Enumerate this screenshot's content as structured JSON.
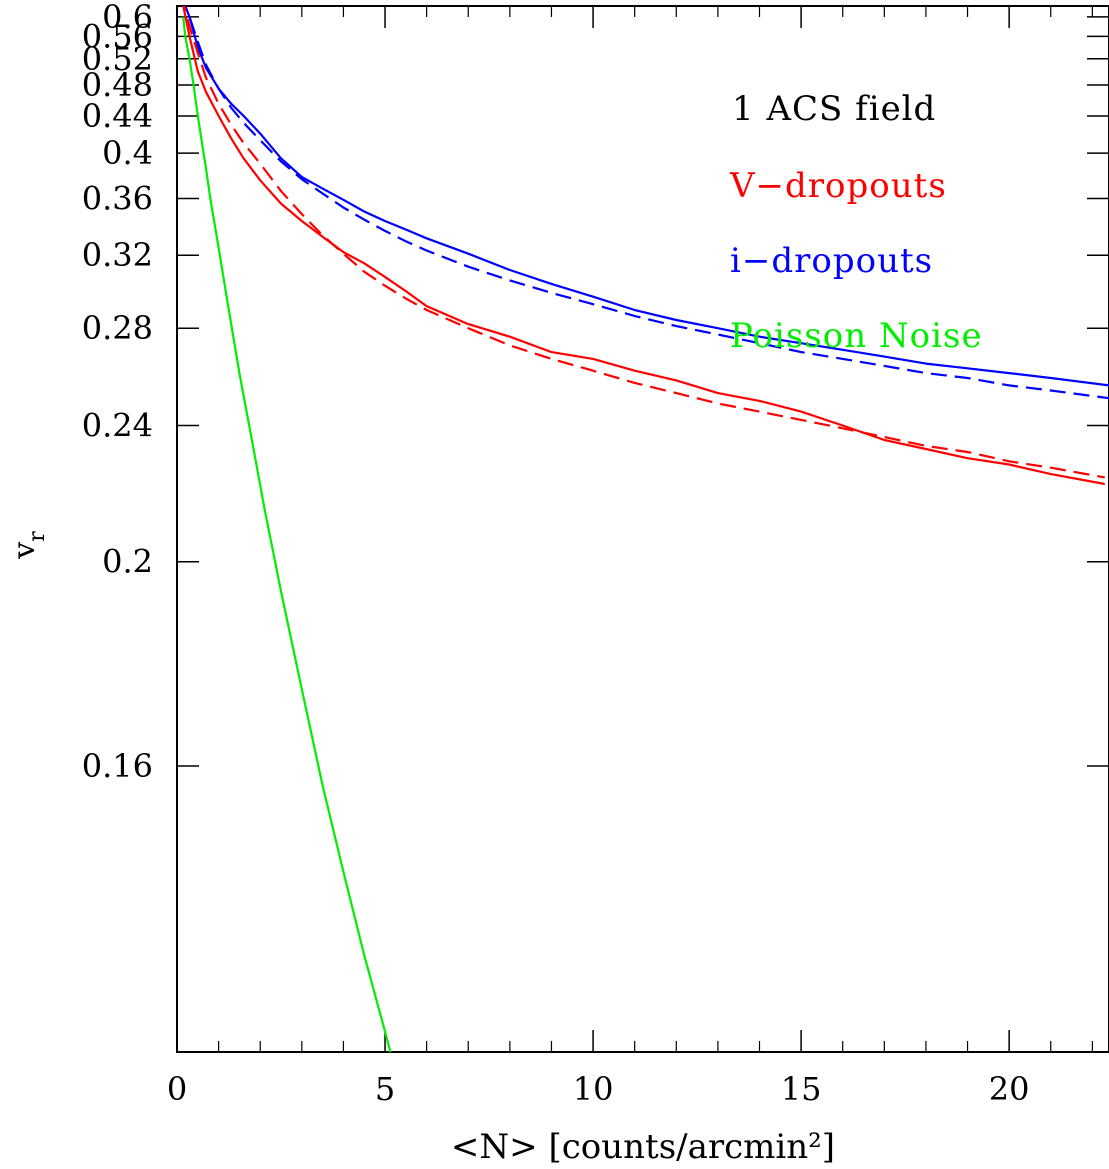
{
  "chart_data": {
    "type": "line",
    "xlabel": "<N> [counts/arcmin²]",
    "ylabel": "v_r",
    "xlim": [
      0,
      22.4
    ],
    "ylim": [
      0.125,
      0.625
    ],
    "y_scale": "reciprocal",
    "grid": false,
    "legend_position": "top-right",
    "title": "",
    "annotation": "1 ACS field",
    "x_ticks": [
      0,
      5,
      10,
      15,
      20
    ],
    "x_tick_labels": [
      "0",
      "5",
      "10",
      "15",
      "20"
    ],
    "y_ticks": [
      0.16,
      0.2,
      0.24,
      0.28,
      0.32,
      0.36,
      0.4,
      0.44,
      0.48,
      0.52,
      0.56,
      0.6
    ],
    "y_tick_labels": [
      "0.16",
      "0.2",
      "0.24",
      "0.28",
      "0.32",
      "0.36",
      "0.4",
      "0.44",
      "0.48",
      "0.52",
      "0.56",
      "0.6"
    ],
    "legend": [
      {
        "label": "V−dropouts",
        "color": "#ff0000"
      },
      {
        "label": "i−dropouts",
        "color": "#0000ff"
      },
      {
        "label": "Poisson Noise",
        "color": "#00ee00"
      }
    ],
    "series": [
      {
        "color": "#0000ff",
        "dash": "solid",
        "x": [
          0.1,
          0.3,
          0.5,
          0.7,
          1.0,
          1.3,
          1.6,
          2.0,
          2.5,
          3.0,
          3.5,
          4.0,
          4.5,
          5.0,
          5.5,
          6.0,
          7.0,
          8.0,
          9.0,
          10.0,
          11.0,
          12.0,
          13.0,
          14.0,
          15.0,
          16.0,
          17.0,
          18.0,
          19.0,
          20.0,
          21.0,
          22.4
        ],
        "y": [
          0.65,
          0.6,
          0.54,
          0.505,
          0.475,
          0.455,
          0.44,
          0.42,
          0.395,
          0.378,
          0.368,
          0.359,
          0.35,
          0.343,
          0.337,
          0.331,
          0.321,
          0.311,
          0.303,
          0.296,
          0.289,
          0.284,
          0.28,
          0.276,
          0.273,
          0.27,
          0.267,
          0.264,
          0.262,
          0.26,
          0.258,
          0.255
        ]
      },
      {
        "color": "#0000ff",
        "dash": "dashed",
        "x": [
          0.1,
          0.3,
          0.5,
          0.7,
          1.0,
          1.3,
          1.6,
          2.0,
          2.5,
          3.0,
          3.5,
          4.0,
          4.5,
          5.0,
          5.5,
          6.0,
          7.0,
          8.0,
          9.0,
          10.0,
          11.0,
          12.0,
          13.0,
          14.0,
          15.0,
          16.0,
          17.0,
          18.0,
          19.0,
          20.0,
          21.0,
          22.4
        ],
        "y": [
          0.65,
          0.6,
          0.55,
          0.51,
          0.475,
          0.45,
          0.432,
          0.413,
          0.392,
          0.376,
          0.364,
          0.353,
          0.344,
          0.336,
          0.329,
          0.323,
          0.313,
          0.305,
          0.298,
          0.292,
          0.286,
          0.281,
          0.277,
          0.273,
          0.269,
          0.266,
          0.263,
          0.26,
          0.258,
          0.255,
          0.253,
          0.25
        ]
      },
      {
        "color": "#ff0000",
        "dash": "solid",
        "x": [
          0.1,
          0.3,
          0.5,
          0.7,
          1.0,
          1.3,
          1.6,
          2.0,
          2.5,
          3.0,
          3.5,
          4.0,
          4.5,
          5.0,
          5.5,
          6.0,
          7.0,
          8.0,
          9.0,
          10.0,
          11.0,
          12.0,
          13.0,
          14.0,
          15.0,
          16.0,
          17.0,
          18.0,
          19.0,
          20.0,
          21.0,
          22.3
        ],
        "y": [
          0.65,
          0.56,
          0.5,
          0.47,
          0.44,
          0.415,
          0.395,
          0.375,
          0.356,
          0.343,
          0.332,
          0.322,
          0.315,
          0.307,
          0.299,
          0.291,
          0.282,
          0.276,
          0.269,
          0.266,
          0.261,
          0.257,
          0.252,
          0.249,
          0.245,
          0.24,
          0.235,
          0.232,
          0.229,
          0.227,
          0.224,
          0.221
        ]
      },
      {
        "color": "#ff0000",
        "dash": "dashed",
        "x": [
          0.1,
          0.3,
          0.5,
          0.7,
          1.0,
          1.3,
          1.6,
          2.0,
          2.5,
          3.0,
          3.5,
          4.0,
          4.5,
          5.0,
          5.5,
          6.0,
          7.0,
          8.0,
          9.0,
          10.0,
          11.0,
          12.0,
          13.0,
          14.0,
          15.0,
          16.0,
          17.0,
          18.0,
          19.0,
          20.0,
          21.0,
          22.3
        ],
        "y": [
          0.65,
          0.58,
          0.53,
          0.49,
          0.455,
          0.43,
          0.41,
          0.39,
          0.366,
          0.348,
          0.333,
          0.321,
          0.31,
          0.302,
          0.295,
          0.289,
          0.28,
          0.272,
          0.266,
          0.261,
          0.256,
          0.252,
          0.248,
          0.245,
          0.242,
          0.239,
          0.236,
          0.233,
          0.231,
          0.228,
          0.226,
          0.223
        ]
      },
      {
        "color": "#00ee00",
        "dash": "solid",
        "x": [
          0.15,
          0.2,
          0.3,
          0.4,
          0.5,
          0.6,
          0.7,
          0.8,
          1.0,
          1.2,
          1.5,
          1.8,
          2.1,
          2.5,
          3.0,
          3.5,
          4.0,
          4.5,
          5.0,
          5.4
        ],
        "y": [
          0.6,
          0.56,
          0.52,
          0.48,
          0.44,
          0.41,
          0.385,
          0.36,
          0.325,
          0.295,
          0.26,
          0.235,
          0.214,
          0.193,
          0.173,
          0.157,
          0.145,
          0.135,
          0.127,
          0.121
        ]
      }
    ]
  }
}
